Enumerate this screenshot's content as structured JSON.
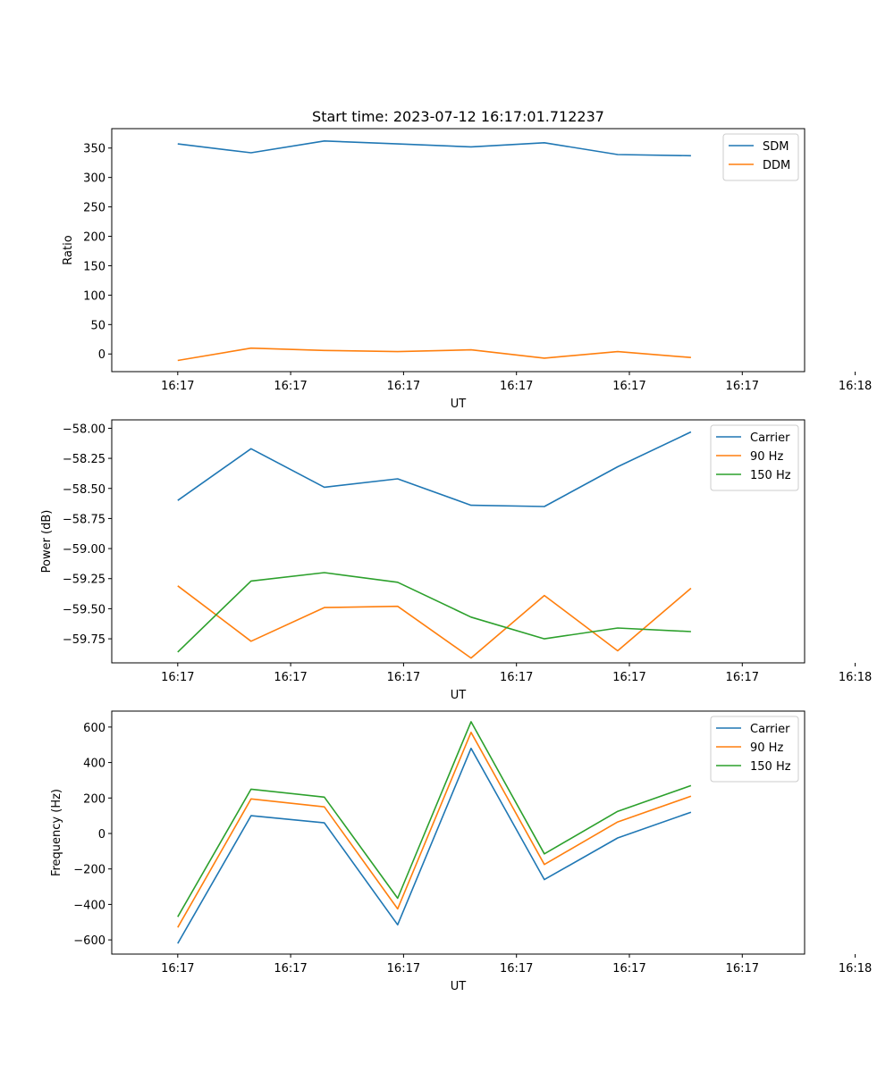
{
  "chart_data": [
    {
      "type": "line",
      "title": "Start time: 2023-07-12 16:17:01.712237",
      "xlabel": "UT",
      "ylabel": "Ratio",
      "xlim": [
        -0.09,
        0.855
      ],
      "ylim": [
        -30,
        383
      ],
      "xticks": [
        0,
        0.154,
        0.308,
        0.462,
        0.616,
        0.77,
        0.924
      ],
      "xtick_labels": [
        "16:17",
        "16:17",
        "16:17",
        "16:17",
        "16:17",
        "16:17",
        "16:18"
      ],
      "yticks": [
        0,
        50,
        100,
        150,
        200,
        250,
        300,
        350
      ],
      "ytick_labels": [
        "0",
        "50",
        "100",
        "150",
        "200",
        "250",
        "300",
        "350"
      ],
      "x": [
        0,
        0.1,
        0.2,
        0.3,
        0.4,
        0.5,
        0.6,
        0.7
      ],
      "legend": "top-right",
      "series": [
        {
          "name": "SDM",
          "color": "#1f77b4",
          "values": [
            357,
            342,
            362,
            357,
            352,
            359,
            339,
            337
          ]
        },
        {
          "name": "DDM",
          "color": "#ff7f0e",
          "values": [
            -11,
            10,
            6,
            4,
            7,
            -7,
            4,
            -6
          ]
        }
      ]
    },
    {
      "type": "line",
      "title": "",
      "xlabel": "UT",
      "ylabel": "Power (dB)",
      "xlim": [
        -0.09,
        0.855
      ],
      "ylim": [
        -59.95,
        -57.93
      ],
      "xticks": [
        0,
        0.154,
        0.308,
        0.462,
        0.616,
        0.77,
        0.924
      ],
      "xtick_labels": [
        "16:17",
        "16:17",
        "16:17",
        "16:17",
        "16:17",
        "16:17",
        "16:18"
      ],
      "yticks": [
        -59.75,
        -59.5,
        -59.25,
        -59.0,
        -58.75,
        -58.5,
        -58.25,
        -58.0
      ],
      "ytick_labels": [
        "−59.75",
        "−59.50",
        "−59.25",
        "−59.00",
        "−58.75",
        "−58.50",
        "−58.25",
        "−58.00"
      ],
      "x": [
        0,
        0.1,
        0.2,
        0.3,
        0.4,
        0.5,
        0.6,
        0.7
      ],
      "legend": "top-right",
      "series": [
        {
          "name": "Carrier",
          "color": "#1f77b4",
          "values": [
            -58.6,
            -58.17,
            -58.49,
            -58.42,
            -58.64,
            -58.65,
            -58.32,
            -58.03
          ]
        },
        {
          "name": "90 Hz",
          "color": "#ff7f0e",
          "values": [
            -59.31,
            -59.77,
            -59.49,
            -59.48,
            -59.91,
            -59.39,
            -59.85,
            -59.33
          ]
        },
        {
          "name": "150 Hz",
          "color": "#2ca02c",
          "values": [
            -59.86,
            -59.27,
            -59.2,
            -59.28,
            -59.57,
            -59.75,
            -59.66,
            -59.69
          ]
        }
      ]
    },
    {
      "type": "line",
      "title": "",
      "xlabel": "UT",
      "ylabel": "Frequency (Hz)",
      "xlim": [
        -0.09,
        0.855
      ],
      "ylim": [
        -680,
        690
      ],
      "xticks": [
        0,
        0.154,
        0.308,
        0.462,
        0.616,
        0.77,
        0.924
      ],
      "xtick_labels": [
        "16:17",
        "16:17",
        "16:17",
        "16:17",
        "16:17",
        "16:17",
        "16:18"
      ],
      "yticks": [
        -600,
        -400,
        -200,
        0,
        200,
        400,
        600
      ],
      "ytick_labels": [
        "−600",
        "−400",
        "−200",
        "0",
        "200",
        "400",
        "600"
      ],
      "x": [
        0,
        0.1,
        0.2,
        0.3,
        0.4,
        0.5,
        0.6,
        0.7
      ],
      "legend": "top-right",
      "series": [
        {
          "name": "Carrier",
          "color": "#1f77b4",
          "values": [
            -620,
            100,
            60,
            -515,
            480,
            -260,
            -25,
            120
          ]
        },
        {
          "name": "90 Hz",
          "color": "#ff7f0e",
          "values": [
            -530,
            195,
            150,
            -425,
            570,
            -175,
            65,
            210
          ]
        },
        {
          "name": "150 Hz",
          "color": "#2ca02c",
          "values": [
            -470,
            250,
            205,
            -365,
            630,
            -115,
            125,
            270
          ]
        }
      ]
    }
  ]
}
